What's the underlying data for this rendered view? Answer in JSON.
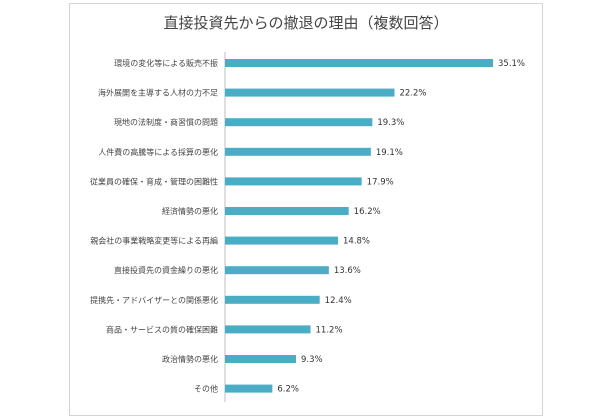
{
  "chart_data": {
    "type": "bar",
    "orientation": "horizontal",
    "title": "直接投資先からの撤退の理由（複数回答）",
    "categories": [
      "環境の変化等による販売不振",
      "海外展開を主導する人材の力不足",
      "現地の法制度・商習慣の問題",
      "人件費の高騰等による採算の悪化",
      "従業員の確保・育成・管理の困難性",
      "経済情勢の悪化",
      "親会社の事業戦略変更等による再編",
      "直接投資先の資金繰りの悪化",
      "提携先・アドバイザーとの関係悪化",
      "商品・サービスの質の確保困難",
      "政治情勢の悪化",
      "その他"
    ],
    "values": [
      35.1,
      22.2,
      19.3,
      19.1,
      17.9,
      16.2,
      14.8,
      13.6,
      12.4,
      11.2,
      9.3,
      6.2
    ],
    "value_suffix": "%",
    "xlim": [
      0,
      40
    ],
    "grid": false,
    "legend": "none",
    "bar_color": "#4bacc6"
  }
}
